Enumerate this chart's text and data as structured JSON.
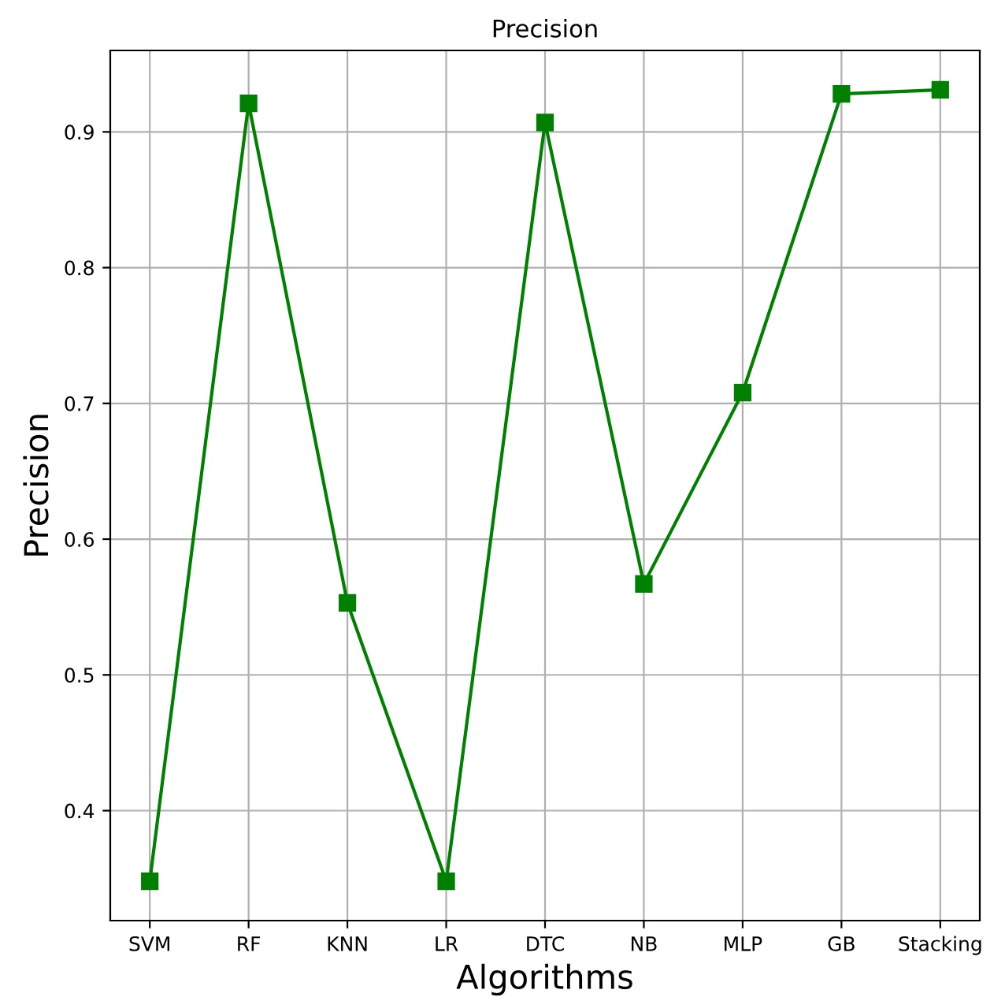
{
  "chart_data": {
    "type": "line",
    "title": "Precision",
    "xlabel": "Algorithms",
    "ylabel": "Precision",
    "categories": [
      "SVM",
      "RF",
      "KNN",
      "LR",
      "DTC",
      "NB",
      "MLP",
      "GB",
      "Stacking"
    ],
    "series": [
      {
        "color": "#008000",
        "values": [
          0.348,
          0.921,
          0.553,
          0.348,
          0.907,
          0.567,
          0.708,
          0.928,
          0.931
        ]
      }
    ],
    "ylim": [
      0.319,
      0.96
    ],
    "yticks": [
      0.4,
      0.5,
      0.6,
      0.7,
      0.8,
      0.9
    ],
    "grid": true,
    "marker": "square",
    "line_style": "solid"
  }
}
